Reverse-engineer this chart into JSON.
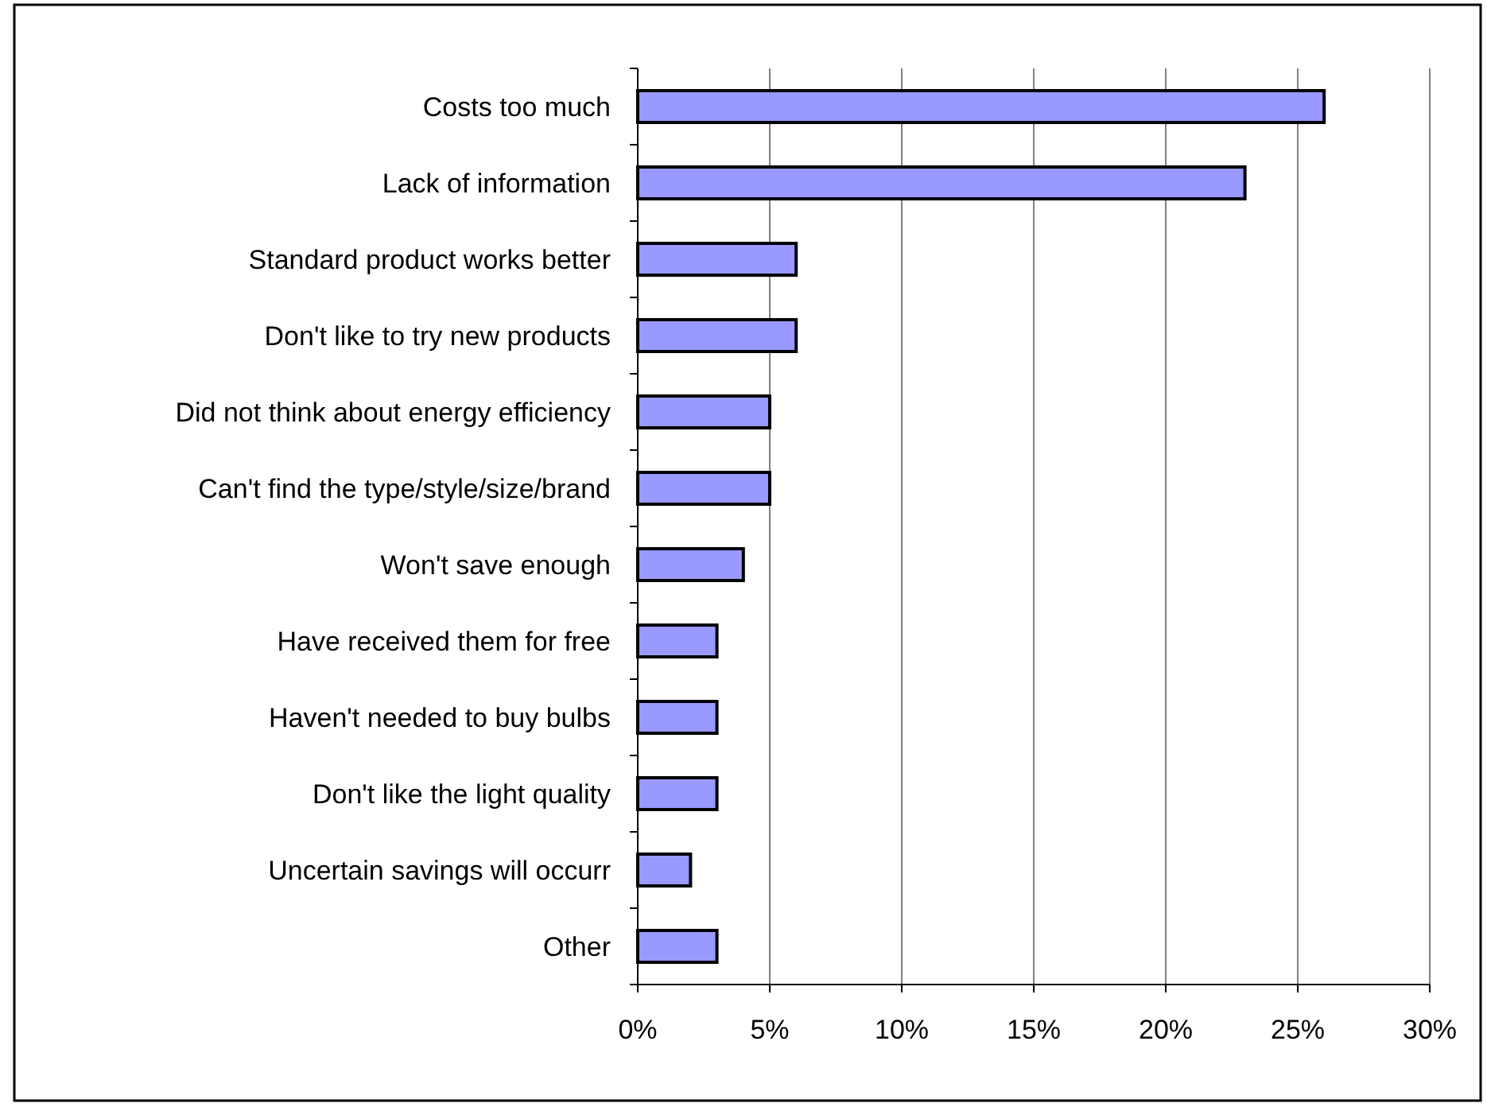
{
  "chart_data": {
    "type": "bar",
    "orientation": "horizontal",
    "categories": [
      "Costs too much",
      "Lack of information",
      "Standard product works better",
      "Don't like to try new products",
      "Did not think about energy efficiency",
      "Can't find the type/style/size/brand",
      "Won't save enough",
      "Have received them for free",
      "Haven't needed to buy bulbs",
      "Don't like the light quality",
      "Uncertain savings will occurr",
      "Other"
    ],
    "values": [
      26,
      23,
      6,
      6,
      5,
      5,
      4,
      3,
      3,
      3,
      2,
      3
    ],
    "color": "#9999ff",
    "xlim": [
      0,
      30
    ],
    "xticks": [
      {
        "value": 0,
        "label": "0%"
      },
      {
        "value": 5,
        "label": "5%"
      },
      {
        "value": 10,
        "label": "10%"
      },
      {
        "value": 15,
        "label": "15%"
      },
      {
        "value": 20,
        "label": "20%"
      },
      {
        "value": 25,
        "label": "25%"
      },
      {
        "value": 30,
        "label": "30%"
      }
    ],
    "grid": "x"
  }
}
